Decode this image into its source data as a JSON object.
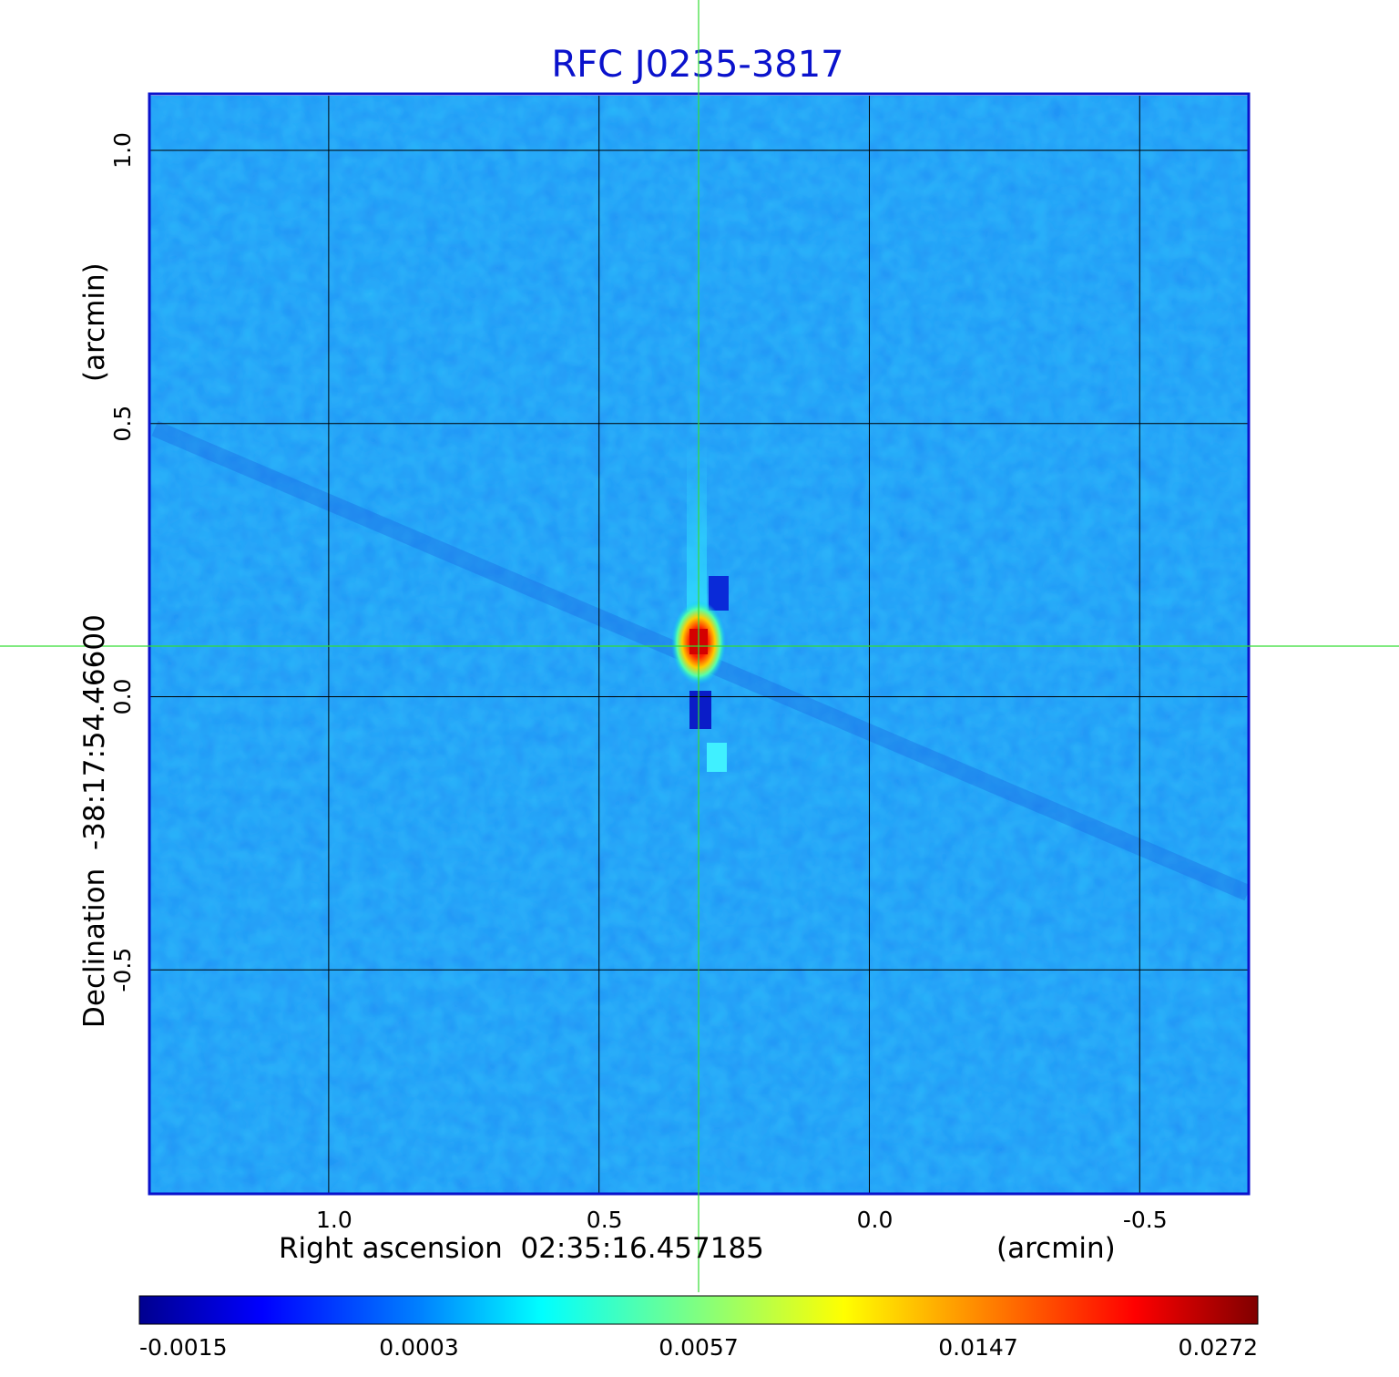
{
  "chart_data": {
    "type": "heatmap",
    "title": "RFC J0235-3817",
    "xlabel": "Right ascension  02:35:16.457185",
    "xunit": "(arcmin)",
    "ylabel": "Declination  -38:17:54.46600",
    "yunit": "(arcmin)",
    "x_ticks": [
      "1.0",
      "0.5",
      "0.0",
      "-0.5"
    ],
    "x_tick_values": [
      1.0,
      0.5,
      0.0,
      -0.5
    ],
    "y_ticks": [
      "1.0",
      "0.5",
      "0.0",
      "-0.5"
    ],
    "y_tick_values": [
      1.0,
      0.5,
      0.0,
      -0.5
    ],
    "xlim": [
      1.33,
      -0.7
    ],
    "ylim": [
      -0.91,
      1.1
    ],
    "grid": true,
    "colormap": "jet",
    "colorbar_ticks": [
      "-0.0015",
      "0.0003",
      "0.0057",
      "0.0147",
      "0.0272"
    ],
    "colorbar_values": [
      -0.0015,
      0.0003,
      0.0057,
      0.0147,
      0.0272
    ],
    "source_peak": {
      "x": 0.32,
      "y": 0.1,
      "value": 0.0272
    },
    "crosshair": {
      "x": 0.32,
      "y": 0.09
    },
    "colors": {
      "frame": "#0a12cc",
      "title": "#0a12cc",
      "crosshair": "#33dd33",
      "grid": "#000000",
      "background_noise": "#1e8cf5"
    }
  }
}
